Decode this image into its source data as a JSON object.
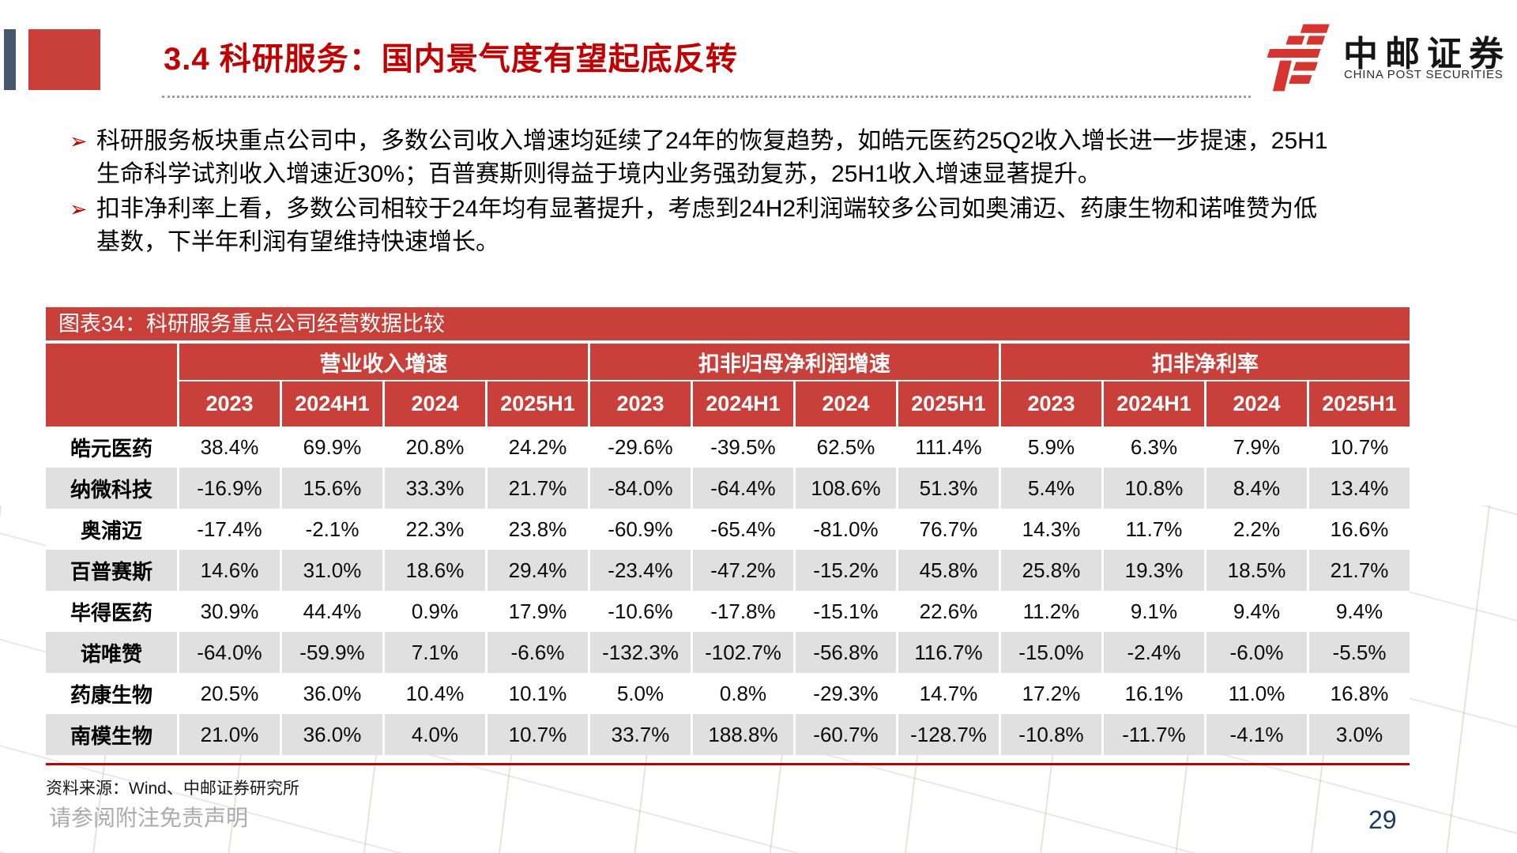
{
  "slide": {
    "title": "3.4 科研服务：国内景气度有望起底反转",
    "bullet_marker": "➢",
    "source_note": "资料来源：Wind、中邮证券研究所",
    "footer_disclaimer": "请参阅附注免责声明",
    "page_number": "29"
  },
  "logo": {
    "name_cn": "中邮证券",
    "name_en": "CHINA POST SECURITIES"
  },
  "bullets": [
    "科研服务板块重点公司中，多数公司收入增速均延续了24年的恢复趋势，如皓元医药25Q2收入增长进一步提速，25H1生命科学试剂收入增速近30%；百普赛斯则得益于境内业务强劲复苏，25H1收入增速显著提升。",
    "扣非净利率上看，多数公司相较于24年均有显著提升，考虑到24H2利润端较多公司如奥浦迈、药康生物和诺唯赞为低基数，下半年利润有望维持快速增长。"
  ],
  "colors": {
    "title_red": "#C00000",
    "table_red": "#C9403B",
    "row_alt_gray": "#E0E0E0",
    "accent_blue_bar": "#47586E",
    "page_number_navy": "#1F3864",
    "disclaimer_gray": "#ABABAB"
  },
  "chart_data": {
    "type": "table",
    "title": "图表34：科研服务重点公司经营数据比较",
    "column_groups": [
      {
        "label": "营业收入增速",
        "cols": [
          "2023",
          "2024H1",
          "2024",
          "2025H1"
        ]
      },
      {
        "label": "扣非归母净利润增速",
        "cols": [
          "2023",
          "2024H1",
          "2024",
          "2025H1"
        ]
      },
      {
        "label": "扣非净利率",
        "cols": [
          "2023",
          "2024H1",
          "2024",
          "2025H1"
        ]
      }
    ],
    "rows": [
      {
        "company": "皓元医药",
        "values": [
          "38.4%",
          "69.9%",
          "20.8%",
          "24.2%",
          "-29.6%",
          "-39.5%",
          "62.5%",
          "111.4%",
          "5.9%",
          "6.3%",
          "7.9%",
          "10.7%"
        ]
      },
      {
        "company": "纳微科技",
        "values": [
          "-16.9%",
          "15.6%",
          "33.3%",
          "21.7%",
          "-84.0%",
          "-64.4%",
          "108.6%",
          "51.3%",
          "5.4%",
          "10.8%",
          "8.4%",
          "13.4%"
        ]
      },
      {
        "company": "奥浦迈",
        "values": [
          "-17.4%",
          "-2.1%",
          "22.3%",
          "23.8%",
          "-60.9%",
          "-65.4%",
          "-81.0%",
          "76.7%",
          "14.3%",
          "11.7%",
          "2.2%",
          "16.6%"
        ]
      },
      {
        "company": "百普赛斯",
        "values": [
          "14.6%",
          "31.0%",
          "18.6%",
          "29.4%",
          "-23.4%",
          "-47.2%",
          "-15.2%",
          "45.8%",
          "25.8%",
          "19.3%",
          "18.5%",
          "21.7%"
        ]
      },
      {
        "company": "毕得医药",
        "values": [
          "30.9%",
          "44.4%",
          "0.9%",
          "17.9%",
          "-10.6%",
          "-17.8%",
          "-15.1%",
          "22.6%",
          "11.2%",
          "9.1%",
          "9.4%",
          "9.4%"
        ]
      },
      {
        "company": "诺唯赞",
        "values": [
          "-64.0%",
          "-59.9%",
          "7.1%",
          "-6.6%",
          "-132.3%",
          "-102.7%",
          "-56.8%",
          "116.7%",
          "-15.0%",
          "-2.4%",
          "-6.0%",
          "-5.5%"
        ]
      },
      {
        "company": "药康生物",
        "values": [
          "20.5%",
          "36.0%",
          "10.4%",
          "10.1%",
          "5.0%",
          "0.8%",
          "-29.3%",
          "14.7%",
          "17.2%",
          "16.1%",
          "11.0%",
          "16.8%"
        ]
      },
      {
        "company": "南模生物",
        "values": [
          "21.0%",
          "36.0%",
          "4.0%",
          "10.7%",
          "33.7%",
          "188.8%",
          "-60.7%",
          "-128.7%",
          "-10.8%",
          "-11.7%",
          "-4.1%",
          "3.0%"
        ]
      }
    ]
  }
}
